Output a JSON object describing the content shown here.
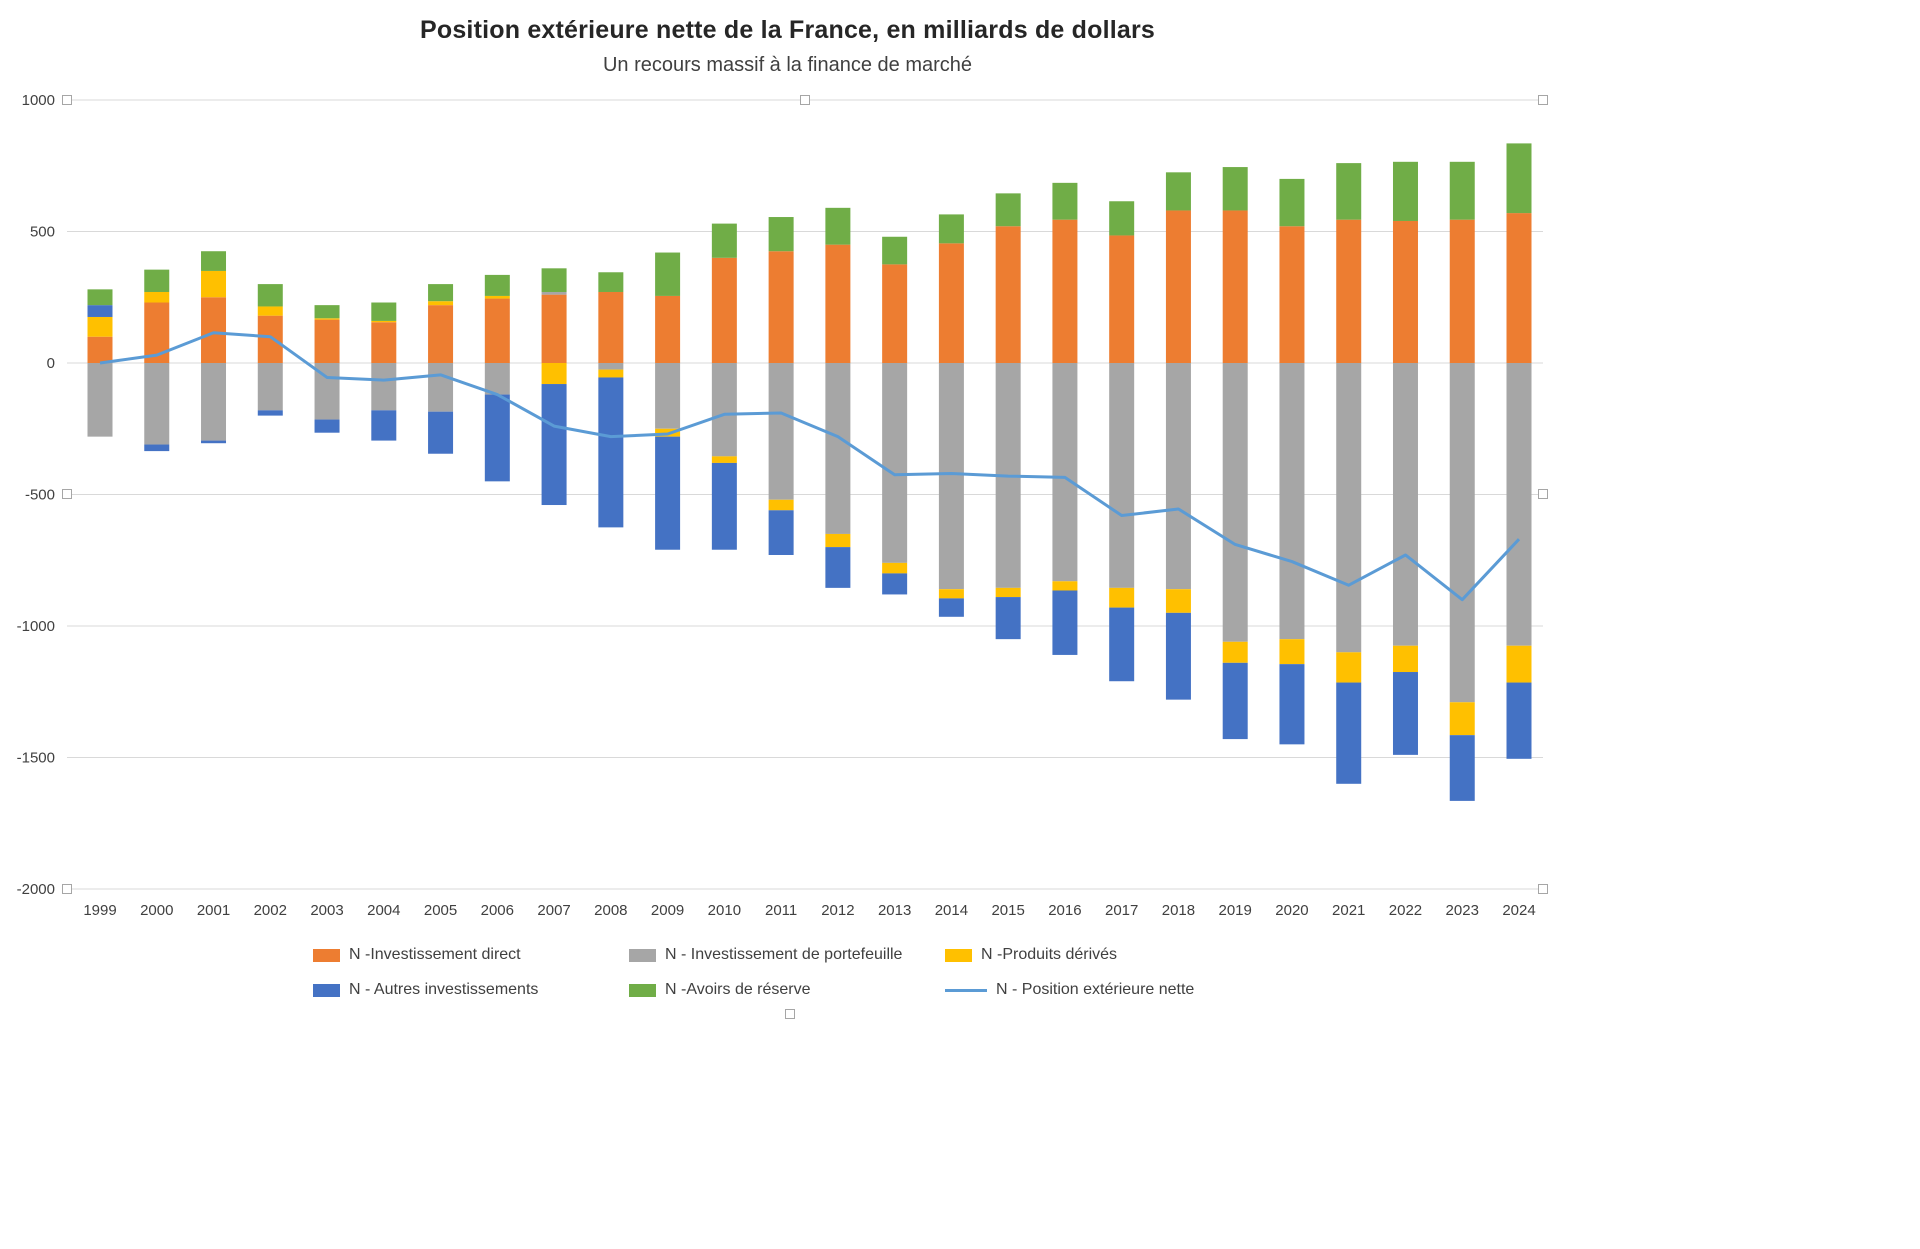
{
  "title": "Position extérieure nette de la France, en milliards de dollars",
  "subtitle": "Un recours massif à la finance de marché",
  "chart_data": {
    "type": "bar",
    "stacked": true,
    "grid": true,
    "legend_position": "bottom",
    "ylim": [
      -2000,
      1000
    ],
    "yticks": [
      1000,
      500,
      0,
      -500,
      -1000,
      -1500,
      -2000
    ],
    "categories": [
      "1999",
      "2000",
      "2001",
      "2002",
      "2003",
      "2004",
      "2005",
      "2006",
      "2007",
      "2008",
      "2009",
      "2010",
      "2011",
      "2012",
      "2013",
      "2014",
      "2015",
      "2016",
      "2017",
      "2018",
      "2019",
      "2020",
      "2021",
      "2022",
      "2023",
      "2024"
    ],
    "series": [
      {
        "name": "N -Investissement direct",
        "type": "bar",
        "color": "#ED7D31",
        "values": [
          100,
          230,
          250,
          180,
          165,
          155,
          220,
          245,
          260,
          270,
          255,
          400,
          425,
          450,
          375,
          455,
          520,
          545,
          485,
          580,
          580,
          520,
          545,
          540,
          545,
          570
        ]
      },
      {
        "name": "N - Investissement de portefeuille",
        "type": "bar",
        "color": "#A6A6A6",
        "values": [
          -280,
          -310,
          -295,
          -180,
          -215,
          -180,
          -185,
          -120,
          10,
          -25,
          -250,
          -355,
          -520,
          -650,
          -760,
          -860,
          -855,
          -830,
          -855,
          -860,
          -1060,
          -1050,
          -1100,
          -1075,
          -1290,
          -1075
        ]
      },
      {
        "name": "N -Produits dérivés",
        "type": "bar",
        "color": "#FFC000",
        "values": [
          75,
          40,
          100,
          35,
          5,
          5,
          15,
          10,
          -80,
          -30,
          -30,
          -25,
          -40,
          -50,
          -40,
          -35,
          -35,
          -35,
          -75,
          -90,
          -80,
          -95,
          -115,
          -100,
          -125,
          -140
        ]
      },
      {
        "name": "N - Autres investissements",
        "type": "bar",
        "color": "#4472C4",
        "values": [
          45,
          -25,
          -10,
          -20,
          -50,
          -115,
          -160,
          -330,
          -460,
          -570,
          -430,
          -330,
          -170,
          -155,
          -80,
          -70,
          -160,
          -245,
          -280,
          -330,
          -290,
          -305,
          -385,
          -315,
          -250,
          -290
        ]
      },
      {
        "name": "N -Avoirs de réserve",
        "type": "bar",
        "color": "#70AD47",
        "values": [
          60,
          85,
          75,
          85,
          50,
          70,
          65,
          80,
          90,
          75,
          165,
          130,
          130,
          140,
          105,
          110,
          125,
          140,
          130,
          145,
          165,
          180,
          215,
          225,
          220,
          265
        ]
      },
      {
        "name": "N - Position extérieure nette",
        "type": "line",
        "color": "#5B9BD5",
        "values": [
          0,
          30,
          115,
          100,
          -55,
          -65,
          -45,
          -120,
          -240,
          -280,
          -270,
          -195,
          -190,
          -280,
          -425,
          -420,
          -430,
          -435,
          -580,
          -555,
          -690,
          -755,
          -845,
          -730,
          -900,
          -670
        ]
      }
    ]
  }
}
